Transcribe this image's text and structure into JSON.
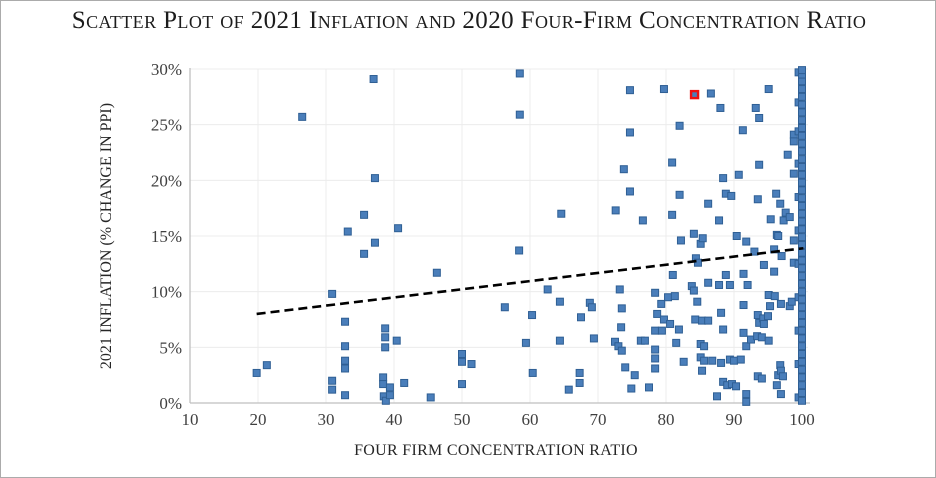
{
  "chart_data": {
    "type": "scatter",
    "title": "Scatter Plot of 2021 Inflation and 2020 Four-Firm Concentration Ratio",
    "xlabel": "FOUR FIRM CONCENTRATION RATIO",
    "ylabel": "2021 INFLATION (% CHANGE IN PPI)",
    "xlim": [
      10,
      100
    ],
    "ylim": [
      0,
      30
    ],
    "xticks": [
      10,
      20,
      30,
      40,
      50,
      60,
      70,
      80,
      90,
      100
    ],
    "ytick_labels": [
      "0%",
      "5%",
      "10%",
      "15%",
      "20%",
      "25%",
      "30%"
    ],
    "ytick_values": [
      0,
      5,
      10,
      15,
      20,
      25,
      30
    ],
    "grid": true,
    "legend": "none",
    "colors": {
      "marker_fill": "#4a7eba",
      "marker_border": "#2f5f94",
      "highlight_border": "#ee1111",
      "gridline": "#ececec",
      "axis_line": "#bfbfbf",
      "text": "#3f3f3f",
      "trend": "#000000"
    },
    "trendline": {
      "style": "dashed",
      "x1": 19.8,
      "y1": 8.0,
      "x2": 100.2,
      "y2": 13.9
    },
    "highlight_point": {
      "x": 84.2,
      "y": 27.7
    },
    "points": [
      [
        19.8,
        2.7
      ],
      [
        21.3,
        3.4
      ],
      [
        26.5,
        25.7
      ],
      [
        30.9,
        9.8
      ],
      [
        30.9,
        2.0
      ],
      [
        30.9,
        1.2
      ],
      [
        32.8,
        7.3
      ],
      [
        32.8,
        5.1
      ],
      [
        32.8,
        3.8
      ],
      [
        32.8,
        3.1
      ],
      [
        32.8,
        0.7
      ],
      [
        33.2,
        15.4
      ],
      [
        35.6,
        16.9
      ],
      [
        35.6,
        13.4
      ],
      [
        37.0,
        29.1
      ],
      [
        37.2,
        20.2
      ],
      [
        37.2,
        14.4
      ],
      [
        38.4,
        2.3
      ],
      [
        38.4,
        1.7
      ],
      [
        38.5,
        0.6
      ],
      [
        38.7,
        6.7
      ],
      [
        38.7,
        5.9
      ],
      [
        38.7,
        5.0
      ],
      [
        38.8,
        0.2
      ],
      [
        39.4,
        1.4
      ],
      [
        39.4,
        0.7
      ],
      [
        40.4,
        5.6
      ],
      [
        40.6,
        15.7
      ],
      [
        41.5,
        1.8
      ],
      [
        45.4,
        0.5
      ],
      [
        46.3,
        11.7
      ],
      [
        50.0,
        4.4
      ],
      [
        50.0,
        3.7
      ],
      [
        50.0,
        1.7
      ],
      [
        51.4,
        3.5
      ],
      [
        56.3,
        8.6
      ],
      [
        58.4,
        13.7
      ],
      [
        58.5,
        29.6
      ],
      [
        58.5,
        25.9
      ],
      [
        59.4,
        5.4
      ],
      [
        60.3,
        7.9
      ],
      [
        60.4,
        2.7
      ],
      [
        62.6,
        10.2
      ],
      [
        64.4,
        9.1
      ],
      [
        64.4,
        5.6
      ],
      [
        64.6,
        17.0
      ],
      [
        65.7,
        1.2
      ],
      [
        67.3,
        2.7
      ],
      [
        67.3,
        1.8
      ],
      [
        67.5,
        7.7
      ],
      [
        68.8,
        9.0
      ],
      [
        69.1,
        8.6
      ],
      [
        69.4,
        5.8
      ],
      [
        72.5,
        5.5
      ],
      [
        72.6,
        17.3
      ],
      [
        73.0,
        5.1
      ],
      [
        73.2,
        10.2
      ],
      [
        73.4,
        6.8
      ],
      [
        73.5,
        8.5
      ],
      [
        73.5,
        4.7
      ],
      [
        73.8,
        21.0
      ],
      [
        74.0,
        3.2
      ],
      [
        74.7,
        28.1
      ],
      [
        74.7,
        24.3
      ],
      [
        74.7,
        19.0
      ],
      [
        74.9,
        1.3
      ],
      [
        75.4,
        2.5
      ],
      [
        76.3,
        5.6
      ],
      [
        76.6,
        16.4
      ],
      [
        76.9,
        5.6
      ],
      [
        77.5,
        1.4
      ],
      [
        78.4,
        9.9
      ],
      [
        78.4,
        6.5
      ],
      [
        78.4,
        4.8
      ],
      [
        78.4,
        4.0
      ],
      [
        78.4,
        3.1
      ],
      [
        78.7,
        8.0
      ],
      [
        79.3,
        8.9
      ],
      [
        79.4,
        6.5
      ],
      [
        79.7,
        28.2
      ],
      [
        79.7,
        7.5
      ],
      [
        80.3,
        9.5
      ],
      [
        80.6,
        7.1
      ],
      [
        80.9,
        21.6
      ],
      [
        80.9,
        16.9
      ],
      [
        81.0,
        11.5
      ],
      [
        81.3,
        9.6
      ],
      [
        81.5,
        5.4
      ],
      [
        81.9,
        6.6
      ],
      [
        82.0,
        24.9
      ],
      [
        82.0,
        18.7
      ],
      [
        82.2,
        14.6
      ],
      [
        82.6,
        3.7
      ],
      [
        83.8,
        10.5
      ],
      [
        84.1,
        15.2
      ],
      [
        84.1,
        10.1
      ],
      [
        84.4,
        13.0
      ],
      [
        84.6,
        9.1
      ],
      [
        84.7,
        12.6
      ],
      [
        84.3,
        7.5
      ],
      [
        85.1,
        14.3
      ],
      [
        85.1,
        5.3
      ],
      [
        85.1,
        4.1
      ],
      [
        85.3,
        7.4
      ],
      [
        85.3,
        2.9
      ],
      [
        85.4,
        14.8
      ],
      [
        85.6,
        5.1
      ],
      [
        85.6,
        3.8
      ],
      [
        86.2,
        17.9
      ],
      [
        86.2,
        10.8
      ],
      [
        86.2,
        7.4
      ],
      [
        86.6,
        27.8
      ],
      [
        86.8,
        3.8
      ],
      [
        87.5,
        0.6
      ],
      [
        87.8,
        16.4
      ],
      [
        87.8,
        10.6
      ],
      [
        88.0,
        26.5
      ],
      [
        88.1,
        8.1
      ],
      [
        88.1,
        3.6
      ],
      [
        88.4,
        20.2
      ],
      [
        88.4,
        6.6
      ],
      [
        88.4,
        1.9
      ],
      [
        88.8,
        18.8
      ],
      [
        88.8,
        11.5
      ],
      [
        89.0,
        1.6
      ],
      [
        89.4,
        10.6
      ],
      [
        89.4,
        3.9
      ],
      [
        89.6,
        18.6
      ],
      [
        89.7,
        1.7
      ],
      [
        90.0,
        3.8
      ],
      [
        90.3,
        1.5
      ],
      [
        90.4,
        15.0
      ],
      [
        90.7,
        20.5
      ],
      [
        91.0,
        3.9
      ],
      [
        91.3,
        24.5
      ],
      [
        91.4,
        11.6
      ],
      [
        91.4,
        8.8
      ],
      [
        91.4,
        6.3
      ],
      [
        91.8,
        14.5
      ],
      [
        91.8,
        5.1
      ],
      [
        91.8,
        0.8
      ],
      [
        91.8,
        0.1
      ],
      [
        92.0,
        10.6
      ],
      [
        92.5,
        5.7
      ],
      [
        93.0,
        13.6
      ],
      [
        93.2,
        26.5
      ],
      [
        93.4,
        6.0
      ],
      [
        93.5,
        18.3
      ],
      [
        93.5,
        7.9
      ],
      [
        93.5,
        2.4
      ],
      [
        93.7,
        25.6
      ],
      [
        93.7,
        21.4
      ],
      [
        93.7,
        7.2
      ],
      [
        94.1,
        5.9
      ],
      [
        94.1,
        2.2
      ],
      [
        94.3,
        7.6
      ],
      [
        94.4,
        12.4
      ],
      [
        94.4,
        7.1
      ],
      [
        95.0,
        7.8
      ],
      [
        95.1,
        28.2
      ],
      [
        95.1,
        9.7
      ],
      [
        95.1,
        5.6
      ],
      [
        95.3,
        8.7
      ],
      [
        95.4,
        16.5
      ],
      [
        95.9,
        13.8
      ],
      [
        95.9,
        11.8
      ],
      [
        96.0,
        9.6
      ],
      [
        96.2,
        18.8
      ],
      [
        96.3,
        15.1
      ],
      [
        96.3,
        1.6
      ],
      [
        96.5,
        15.0
      ],
      [
        96.5,
        2.5
      ],
      [
        96.8,
        17.9
      ],
      [
        96.8,
        3.4
      ],
      [
        96.9,
        8.9
      ],
      [
        96.9,
        2.9
      ],
      [
        96.9,
        0.8
      ],
      [
        97.0,
        13.2
      ],
      [
        97.2,
        2.4
      ],
      [
        97.3,
        16.4
      ],
      [
        97.6,
        17.1
      ],
      [
        97.9,
        22.3
      ],
      [
        98.2,
        16.7
      ],
      [
        98.2,
        8.7
      ],
      [
        98.5,
        9.1
      ],
      [
        98.8,
        24.1
      ],
      [
        98.8,
        23.5
      ],
      [
        98.8,
        20.6
      ],
      [
        98.8,
        14.6
      ],
      [
        98.8,
        12.6
      ],
      [
        99.5,
        29.7
      ],
      [
        99.5,
        27.0
      ],
      [
        99.5,
        24.4
      ],
      [
        99.5,
        21.5
      ],
      [
        99.5,
        18.5
      ],
      [
        99.5,
        15.5
      ],
      [
        99.5,
        12.5
      ],
      [
        99.5,
        9.5
      ],
      [
        99.5,
        6.5
      ],
      [
        99.5,
        3.5
      ],
      [
        99.5,
        0.5
      ],
      [
        100,
        0.2
      ],
      [
        100,
        0.9
      ],
      [
        100,
        1.6
      ],
      [
        100,
        2.3
      ],
      [
        100,
        3.0
      ],
      [
        100,
        3.7
      ],
      [
        100,
        4.4
      ],
      [
        100,
        5.1
      ],
      [
        100,
        5.8
      ],
      [
        100,
        6.5
      ],
      [
        100,
        7.2
      ],
      [
        100,
        7.9
      ],
      [
        100,
        8.6
      ],
      [
        100,
        9.3
      ],
      [
        100,
        10.0
      ],
      [
        100,
        10.7
      ],
      [
        100,
        11.4
      ],
      [
        100,
        12.1
      ],
      [
        100,
        12.8
      ],
      [
        100,
        13.5
      ],
      [
        100,
        14.2
      ],
      [
        100,
        14.9
      ],
      [
        100,
        15.6
      ],
      [
        100,
        16.3
      ],
      [
        100,
        17.0
      ],
      [
        100,
        17.7
      ],
      [
        100,
        18.4
      ],
      [
        100,
        19.1
      ],
      [
        100,
        19.8
      ],
      [
        100,
        20.5
      ],
      [
        100,
        21.2
      ],
      [
        100,
        21.9
      ],
      [
        100,
        22.6
      ],
      [
        100,
        23.3
      ],
      [
        100,
        24.0
      ],
      [
        100,
        24.7
      ],
      [
        100,
        25.4
      ],
      [
        100,
        26.1
      ],
      [
        100,
        26.8
      ],
      [
        100,
        27.5
      ],
      [
        100,
        28.2
      ],
      [
        100,
        28.9
      ],
      [
        100,
        29.5
      ],
      [
        100,
        29.9
      ]
    ]
  }
}
